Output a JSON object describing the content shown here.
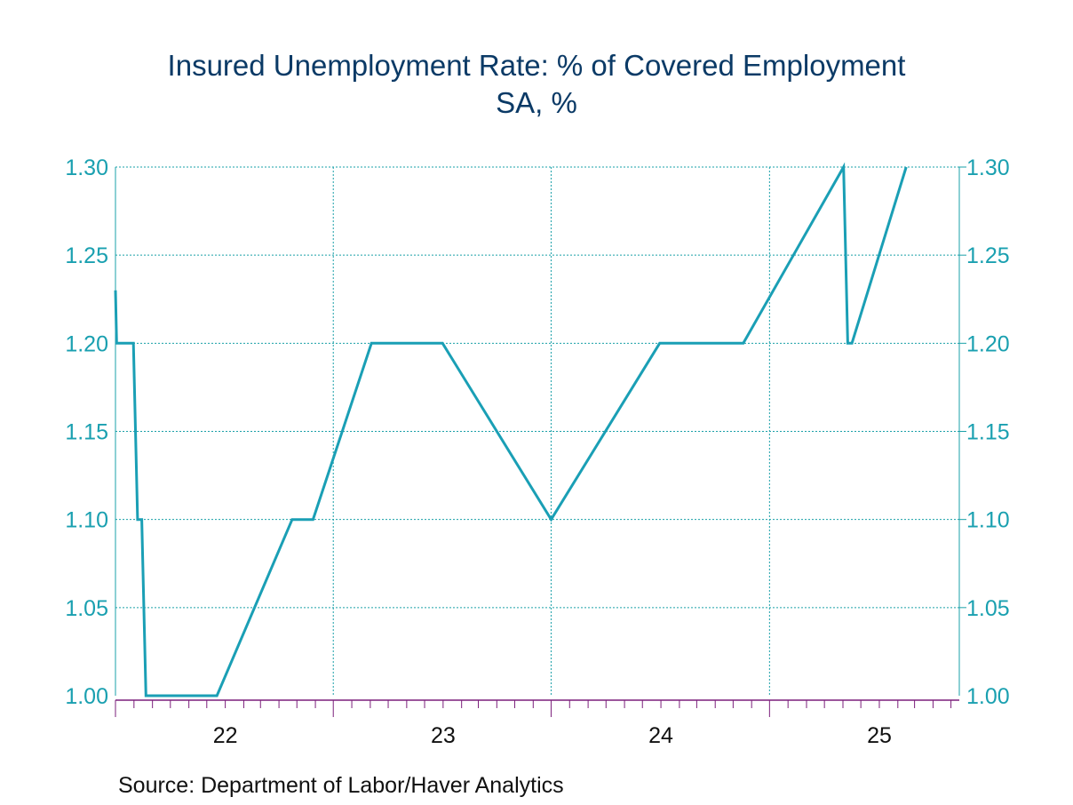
{
  "title": "Insured Unemployment Rate: % of Covered Employment",
  "subtitle": "SA, %",
  "source": "Source:  Department of Labor/Haver Analytics",
  "colors": {
    "line": "#1a9fb5",
    "grid": "#1aa0a8",
    "axis_labels": "#1aa0b0",
    "x_axis": "#7b1f7b",
    "title": "#0b3a66"
  },
  "chart_data": {
    "type": "line",
    "title": "Insured Unemployment Rate: % of Covered Employment",
    "subtitle": "SA, %",
    "xlabel": "",
    "ylabel": "",
    "ylim": [
      1.0,
      1.3
    ],
    "yticks": [
      1.0,
      1.05,
      1.1,
      1.15,
      1.2,
      1.25,
      1.3
    ],
    "ytick_labels": [
      "1.00",
      "1.05",
      "1.10",
      "1.15",
      "1.20",
      "1.25",
      "1.30"
    ],
    "xlim": [
      "2021-07-01",
      "2025-05-15"
    ],
    "x_year_boundaries": [
      "2022-07-01",
      "2023-07-01",
      "2024-07-01"
    ],
    "xtick_labels": [
      "22",
      "23",
      "24",
      "25"
    ],
    "xtick_label_dates": [
      "2022-01-01",
      "2023-01-01",
      "2024-01-01",
      "2025-01-01"
    ],
    "grid": true,
    "series": [
      {
        "x": [
          "2021-07-01",
          "2021-07-03",
          "2021-07-10",
          "2021-07-17",
          "2021-07-24",
          "2021-07-31",
          "2021-08-07",
          "2021-08-14",
          "2021-08-21",
          "2021-08-28",
          "2021-09-04",
          "2021-09-11",
          "2021-09-18",
          "2021-09-25",
          "2021-10-02",
          "2021-12-18",
          "2022-04-23",
          "2022-05-28",
          "2022-09-03",
          "2022-10-15",
          "2022-12-31",
          "2023-07-01",
          "2023-12-30",
          "2024-05-18",
          "2024-11-02",
          "2024-11-09",
          "2024-11-16",
          "2025-02-15"
        ],
        "y": [
          1.23,
          1.2,
          1.2,
          1.2,
          1.2,
          1.2,
          1.1,
          1.1,
          1.0,
          1.0,
          1.0,
          1.0,
          1.0,
          1.0,
          1.0,
          1.0,
          1.1,
          1.1,
          1.2,
          1.2,
          1.2,
          1.1,
          1.2,
          1.2,
          1.3,
          1.2,
          1.2,
          1.3
        ]
      }
    ]
  }
}
